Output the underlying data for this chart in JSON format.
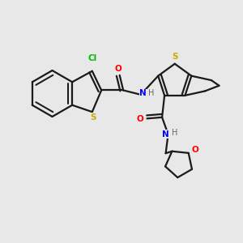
{
  "background_color": "#e8e8e8",
  "bond_color": "#1a1a1a",
  "bond_width": 1.6,
  "atom_colors": {
    "Cl": "#00bb00",
    "S": "#ccaa00",
    "O": "#ff0000",
    "N": "#0000ff",
    "H": "#666666",
    "C": "#1a1a1a"
  },
  "figsize": [
    3.0,
    3.0
  ],
  "dpi": 100
}
